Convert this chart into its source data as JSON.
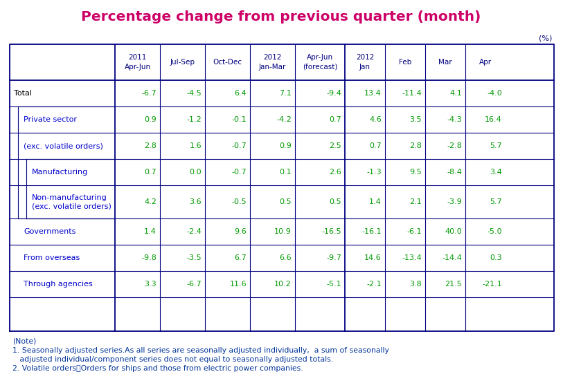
{
  "title": "Percentage change from previous quarter (month)",
  "title_color": "#cc0066",
  "unit_label": "(%)",
  "col_headers": [
    {
      "label": "2011\nApr-Jun",
      "col_idx": 1
    },
    {
      "label": "Jul-Sep",
      "col_idx": 2
    },
    {
      "label": "Oct-Dec",
      "col_idx": 3
    },
    {
      "label": "2012\nJan-Mar",
      "col_idx": 4
    },
    {
      "label": "Apr-Jun\n(forecast)",
      "col_idx": 5
    },
    {
      "label": "2012\nJan",
      "col_idx": 6
    },
    {
      "label": "Feb",
      "col_idx": 7
    },
    {
      "label": "Mar",
      "col_idx": 8
    },
    {
      "label": "Apr",
      "col_idx": 9
    }
  ],
  "rows": [
    {
      "label": "Total",
      "label_indent": 0,
      "values": [
        "-6.7",
        "-4.5",
        "6.4",
        "7.1",
        "-9.4",
        "13.4",
        "-11.4",
        "4.1",
        "-4.0"
      ],
      "label_color": "#000000",
      "value_color": "#009900"
    },
    {
      "label": "Private sector",
      "label_indent": 1,
      "values": [
        "0.9",
        "-1.2",
        "-0.1",
        "-4.2",
        "0.7",
        "4.6",
        "3.5",
        "-4.3",
        "16.4"
      ],
      "label_color": "#0000cc",
      "value_color": "#009900"
    },
    {
      "label": "(exc. volatile orders)",
      "label_indent": 1,
      "values": [
        "2.8",
        "1.6",
        "-0.7",
        "0.9",
        "2.5",
        "0.7",
        "2.8",
        "-2.8",
        "5.7"
      ],
      "label_color": "#0000cc",
      "value_color": "#009900"
    },
    {
      "label": "Manufacturing",
      "label_indent": 2,
      "values": [
        "0.7",
        "0.0",
        "-0.7",
        "0.1",
        "2.6",
        "-1.3",
        "9.5",
        "-8.4",
        "3.4"
      ],
      "label_color": "#0000cc",
      "value_color": "#009900"
    },
    {
      "label": "Non-manufacturing\n(exc. volatile orders)",
      "label_indent": 2,
      "values": [
        "4.2",
        "3.6",
        "-0.5",
        "0.5",
        "0.5",
        "1.4",
        "2.1",
        "-3.9",
        "5.7"
      ],
      "label_color": "#0000cc",
      "value_color": "#009900"
    },
    {
      "label": "Governments",
      "label_indent": 1,
      "values": [
        "1.4",
        "-2.4",
        "9.6",
        "10.9",
        "-16.5",
        "-16.1",
        "-6.1",
        "40.0",
        "-5.0"
      ],
      "label_color": "#0000cc",
      "value_color": "#009900"
    },
    {
      "label": "From overseas",
      "label_indent": 1,
      "values": [
        "-9.8",
        "-3.5",
        "6.7",
        "6.6",
        "-9.7",
        "14.6",
        "-13.4",
        "-14.4",
        "0.3"
      ],
      "label_color": "#0000cc",
      "value_color": "#009900"
    },
    {
      "label": "Through agencies",
      "label_indent": 1,
      "values": [
        "3.3",
        "-6.7",
        "11.6",
        "10.2",
        "-5.1",
        "-2.1",
        "3.8",
        "21.5",
        "-21.1"
      ],
      "label_color": "#0000cc",
      "value_color": "#009900"
    }
  ],
  "note_lines": [
    "(Note)",
    "1. Seasonally adjusted series.As all series are seasonally adjusted individually,  a sum of seasonally",
    "   adjusted individual/component series does not equal to seasonally adjusted totals.",
    "2. Volatile orders：Orders for ships and those from electric power companies."
  ],
  "note_color": "#003399",
  "border_color": "#000080",
  "bg_color": "#ffffff"
}
